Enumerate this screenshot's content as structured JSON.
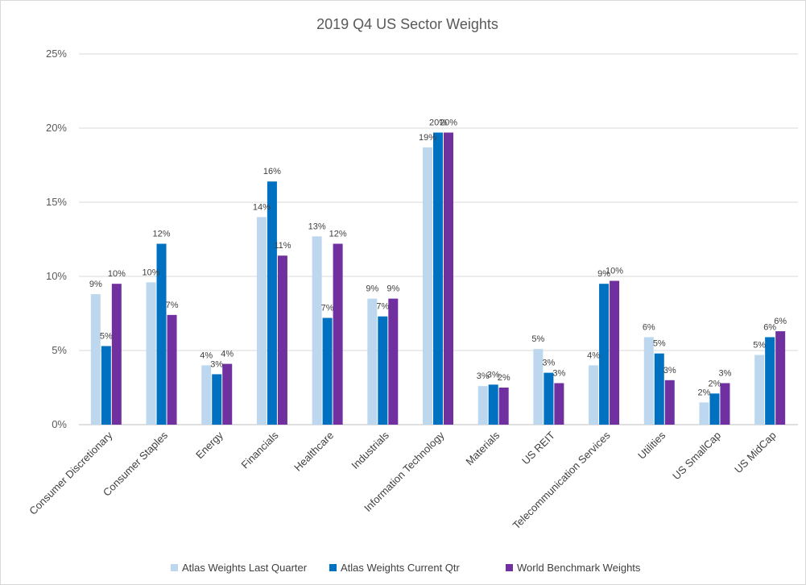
{
  "chart_data": {
    "type": "bar",
    "title": "2019 Q4 US Sector Weights",
    "xlabel": "",
    "ylabel": "",
    "ylim": [
      0,
      25
    ],
    "yticks": [
      "0%",
      "5%",
      "10%",
      "15%",
      "20%",
      "25%"
    ],
    "ytick_values": [
      0,
      5,
      10,
      15,
      20,
      25
    ],
    "grid": true,
    "legend_position": "bottom",
    "categories": [
      "Consumer Discretionary",
      "Consumer Staples",
      "Energy",
      "Financials",
      "Healthcare",
      "Industrials",
      "Information Technology",
      "Materials",
      "US REIT",
      "Telecommunication Services",
      "Utilities",
      "US SmallCap",
      "US MidCap"
    ],
    "series": [
      {
        "name": "Atlas Weights Last Quarter",
        "color": "#bdd7ee",
        "values": [
          8.8,
          9.6,
          4.0,
          14.0,
          12.7,
          8.5,
          18.7,
          2.6,
          5.1,
          4.0,
          5.9,
          1.5,
          4.7
        ],
        "labels": [
          "9%",
          "10%",
          "4%",
          "14%",
          "13%",
          "9%",
          "19%",
          "3%",
          "5%",
          "4%",
          "6%",
          "2%",
          "5%"
        ]
      },
      {
        "name": "Atlas Weights Current Qtr",
        "color": "#0070c0",
        "values": [
          5.3,
          12.2,
          3.4,
          16.4,
          7.2,
          7.3,
          19.7,
          2.7,
          3.5,
          9.5,
          4.8,
          2.1,
          5.9
        ],
        "labels": [
          "5%",
          "12%",
          "3%",
          "16%",
          "7%",
          "7%",
          "20%",
          "3%",
          "3%",
          "9%",
          "5%",
          "2%",
          "6%"
        ]
      },
      {
        "name": "World Benchmark Weights",
        "color": "#7030a0",
        "values": [
          9.5,
          7.4,
          4.1,
          11.4,
          12.2,
          8.5,
          19.7,
          2.5,
          2.8,
          9.7,
          3.0,
          2.8,
          6.3
        ],
        "labels": [
          "10%",
          "7%",
          "4%",
          "11%",
          "12%",
          "9%",
          "20%",
          "2%",
          "3%",
          "10%",
          "3%",
          "3%",
          "6%"
        ]
      }
    ]
  }
}
